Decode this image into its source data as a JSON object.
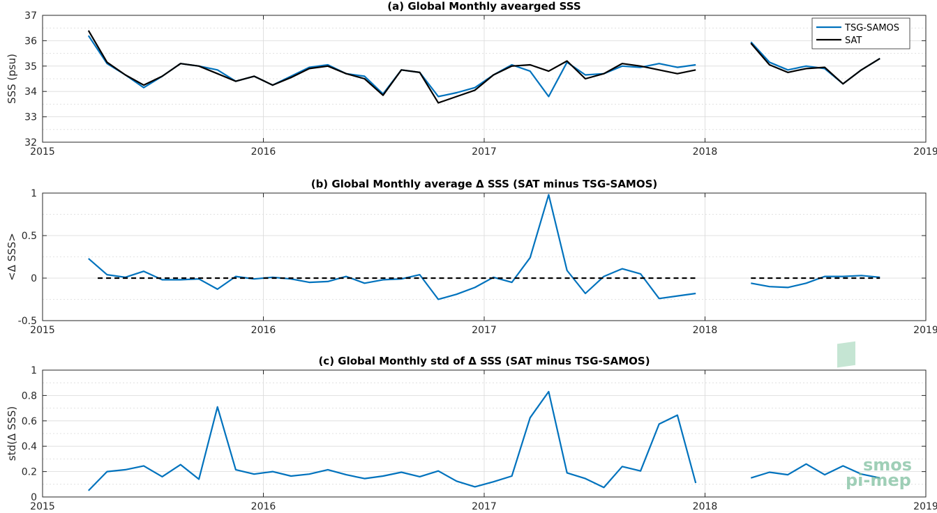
{
  "colors": {
    "tsg": "#0072BD",
    "sat": "#000000",
    "grid": "#d9d9d9",
    "axis": "#262626",
    "logo": "#7fbf9f"
  },
  "logo": {
    "line1": "smos",
    "line2": "pi-mep"
  },
  "chart_data": [
    {
      "type": "line",
      "title": "(a) Global Monthly avearged SSS",
      "ylabel": "SSS (psu)",
      "xlim": [
        2015,
        2019
      ],
      "ylim": [
        32,
        37
      ],
      "xticks": [
        2015,
        2016,
        2017,
        2018,
        2019
      ],
      "yticks": [
        32,
        33,
        34,
        35,
        36,
        37
      ],
      "grid": true,
      "legend": "top-right",
      "series": [
        {
          "name": "TSG-SAMOS",
          "color": "#0072BD",
          "x": [
            2015.208,
            2015.292,
            2015.375,
            2015.458,
            2015.542,
            2015.625,
            2015.708,
            2015.792,
            2015.875,
            2015.958,
            2016.042,
            2016.125,
            2016.208,
            2016.292,
            2016.375,
            2016.458,
            2016.542,
            2016.625,
            2016.708,
            2016.792,
            2016.875,
            2016.958,
            2017.042,
            2017.125,
            2017.208,
            2017.292,
            2017.375,
            2017.458,
            2017.542,
            2017.625,
            2017.708,
            2017.792,
            2017.875,
            2017.958,
            null,
            2018.208,
            2018.292,
            2018.375,
            2018.458,
            2018.542,
            2018.625,
            2018.708,
            2018.792
          ],
          "y": [
            36.2,
            35.1,
            34.65,
            34.15,
            34.6,
            35.1,
            35.0,
            34.85,
            34.4,
            34.6,
            34.25,
            34.6,
            34.95,
            35.05,
            34.7,
            34.6,
            33.9,
            34.85,
            34.75,
            33.8,
            33.95,
            34.15,
            34.65,
            35.05,
            34.8,
            33.8,
            35.15,
            34.65,
            34.7,
            35.0,
            34.95,
            35.1,
            34.95,
            35.05,
            null,
            35.95,
            35.15,
            34.85,
            35.0,
            34.9,
            34.3,
            34.85,
            35.3
          ]
        },
        {
          "name": "SAT",
          "color": "#000000",
          "x": [
            2015.208,
            2015.292,
            2015.375,
            2015.458,
            2015.542,
            2015.625,
            2015.708,
            2015.792,
            2015.875,
            2015.958,
            2016.042,
            2016.125,
            2016.208,
            2016.292,
            2016.375,
            2016.458,
            2016.542,
            2016.625,
            2016.708,
            2016.792,
            2016.875,
            2016.958,
            2017.042,
            2017.125,
            2017.208,
            2017.292,
            2017.375,
            2017.458,
            2017.542,
            2017.625,
            2017.708,
            2017.792,
            2017.875,
            2017.958,
            null,
            2018.208,
            2018.292,
            2018.375,
            2018.458,
            2018.542,
            2018.625,
            2018.708,
            2018.792
          ],
          "y": [
            36.4,
            35.15,
            34.65,
            34.25,
            34.6,
            35.1,
            35.0,
            34.7,
            34.4,
            34.6,
            34.25,
            34.55,
            34.9,
            35.0,
            34.7,
            34.5,
            33.85,
            34.85,
            34.75,
            33.55,
            33.8,
            34.05,
            34.65,
            35.0,
            35.05,
            34.8,
            35.2,
            34.5,
            34.7,
            35.1,
            35.0,
            34.85,
            34.7,
            34.85,
            null,
            35.9,
            35.05,
            34.75,
            34.9,
            34.95,
            34.3,
            34.85,
            35.3
          ]
        }
      ]
    },
    {
      "type": "line",
      "title": "(b) Global Monthly average Δ SSS (SAT minus TSG-SAMOS)",
      "ylabel": "<Δ SSS>",
      "xlim": [
        2015,
        2019
      ],
      "ylim": [
        -0.5,
        1
      ],
      "xticks": [
        2015,
        2016,
        2017,
        2018,
        2019
      ],
      "yticks": [
        -0.5,
        0,
        0.5,
        1
      ],
      "grid": true,
      "series": [
        {
          "color": "#0072BD",
          "x": [
            2015.208,
            2015.292,
            2015.375,
            2015.458,
            2015.542,
            2015.625,
            2015.708,
            2015.792,
            2015.875,
            2015.958,
            2016.042,
            2016.125,
            2016.208,
            2016.292,
            2016.375,
            2016.458,
            2016.542,
            2016.625,
            2016.708,
            2016.792,
            2016.875,
            2016.958,
            2017.042,
            2017.125,
            2017.208,
            2017.292,
            2017.375,
            2017.458,
            2017.542,
            2017.625,
            2017.708,
            2017.792,
            2017.875,
            2017.958,
            null,
            2018.208,
            2018.292,
            2018.375,
            2018.458,
            2018.542,
            2018.625,
            2018.708,
            2018.792
          ],
          "y": [
            0.23,
            0.04,
            0.01,
            0.08,
            -0.02,
            -0.02,
            -0.01,
            -0.13,
            0.02,
            -0.01,
            0.01,
            -0.01,
            -0.05,
            -0.04,
            0.02,
            -0.06,
            -0.02,
            -0.01,
            0.04,
            -0.25,
            -0.19,
            -0.11,
            0.01,
            -0.05,
            0.24,
            0.98,
            0.09,
            -0.18,
            0.02,
            0.11,
            0.05,
            -0.24,
            -0.21,
            -0.18,
            null,
            -0.06,
            -0.1,
            -0.11,
            -0.06,
            0.02,
            0.02,
            0.03,
            0.01
          ]
        },
        {
          "color": "#000000",
          "dashed": true,
          "x": [
            2015.25,
            2015.958,
            null,
            2016.0,
            2017.958,
            null,
            2018.208,
            2018.792
          ],
          "y": [
            0,
            0,
            null,
            0,
            0,
            null,
            0,
            0
          ]
        }
      ]
    },
    {
      "type": "line",
      "title": "(c) Global Monthly std of Δ SSS (SAT minus TSG-SAMOS)",
      "ylabel": "std(Δ SSS)",
      "xlim": [
        2015,
        2019
      ],
      "ylim": [
        0,
        1
      ],
      "xticks": [
        2015,
        2016,
        2017,
        2018,
        2019
      ],
      "yticks": [
        0,
        0.2,
        0.4,
        0.6,
        0.8,
        1
      ],
      "grid": true,
      "series": [
        {
          "color": "#0072BD",
          "x": [
            2015.208,
            2015.292,
            2015.375,
            2015.458,
            2015.542,
            2015.625,
            2015.708,
            2015.792,
            2015.875,
            2015.958,
            2016.042,
            2016.125,
            2016.208,
            2016.292,
            2016.375,
            2016.458,
            2016.542,
            2016.625,
            2016.708,
            2016.792,
            2016.875,
            2016.958,
            2017.042,
            2017.125,
            2017.208,
            2017.292,
            2017.375,
            2017.458,
            2017.542,
            2017.625,
            2017.708,
            2017.792,
            2017.875,
            2017.958,
            null,
            2018.208,
            2018.292,
            2018.375,
            2018.458,
            2018.542,
            2018.625,
            2018.708,
            2018.792
          ],
          "y": [
            0.05,
            0.2,
            0.215,
            0.245,
            0.16,
            0.255,
            0.14,
            0.71,
            0.215,
            0.18,
            0.2,
            0.165,
            0.18,
            0.215,
            0.175,
            0.145,
            0.165,
            0.195,
            0.16,
            0.205,
            0.125,
            0.08,
            0.12,
            0.165,
            0.625,
            0.83,
            0.19,
            0.145,
            0.075,
            0.24,
            0.205,
            0.575,
            0.645,
            0.11,
            null,
            0.15,
            0.195,
            0.175,
            0.26,
            0.175,
            0.245,
            0.18,
            0.15
          ]
        }
      ]
    }
  ]
}
